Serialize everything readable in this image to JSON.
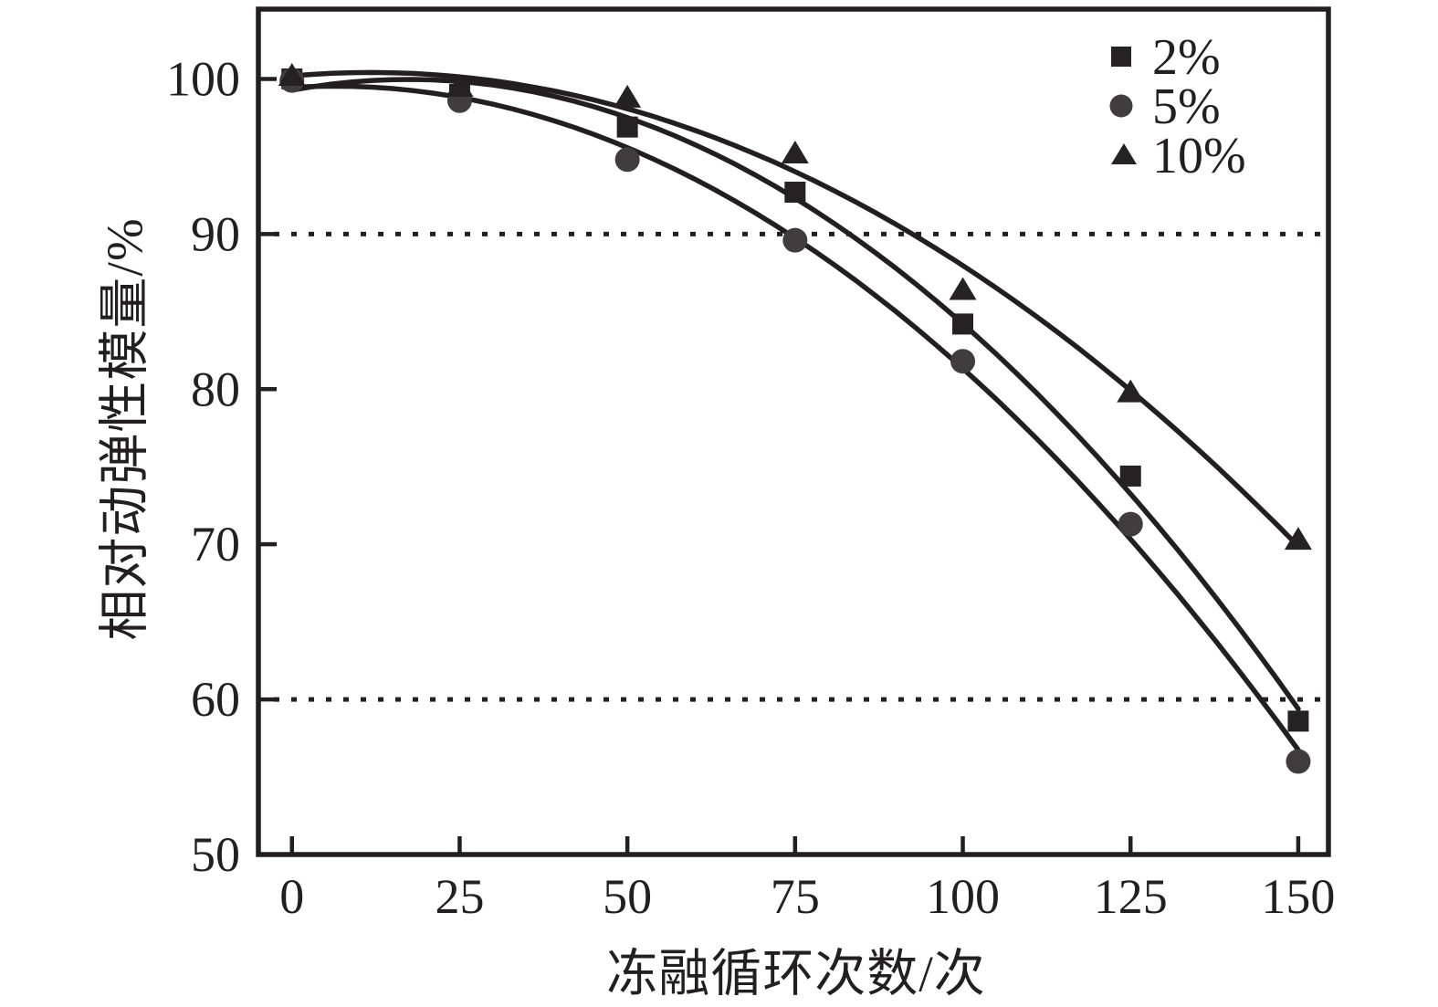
{
  "chart_data": {
    "type": "line",
    "title": "",
    "xlabel": "冻融循环次数/次",
    "ylabel": "相对动弹性模量/%",
    "x": [
      0,
      25,
      50,
      75,
      100,
      125,
      150
    ],
    "series": [
      {
        "name": "2%",
        "marker": "square",
        "color": "#262223",
        "values": [
          100.0,
          99.0,
          96.9,
          92.7,
          84.2,
          74.4,
          58.6
        ]
      },
      {
        "name": "5%",
        "marker": "circle",
        "color": "#413d3e",
        "values": [
          99.9,
          98.6,
          94.8,
          89.6,
          81.8,
          71.3,
          56.0
        ]
      },
      {
        "name": "10%",
        "marker": "triangle",
        "color": "#262223",
        "values": [
          100.2,
          99.5,
          98.8,
          95.2,
          86.4,
          79.8,
          70.3
        ]
      }
    ],
    "xlim": [
      -5,
      154.5
    ],
    "ylim": [
      50,
      104.5
    ],
    "xticks": [
      0,
      25,
      50,
      75,
      100,
      125,
      150
    ],
    "yticks": [
      50,
      60,
      70,
      80,
      90,
      100
    ],
    "reference_lines": [
      90,
      60
    ],
    "grid": "off",
    "legend_position": "top-right",
    "curve_fit": "quadratic",
    "line_color": "#231f20"
  }
}
